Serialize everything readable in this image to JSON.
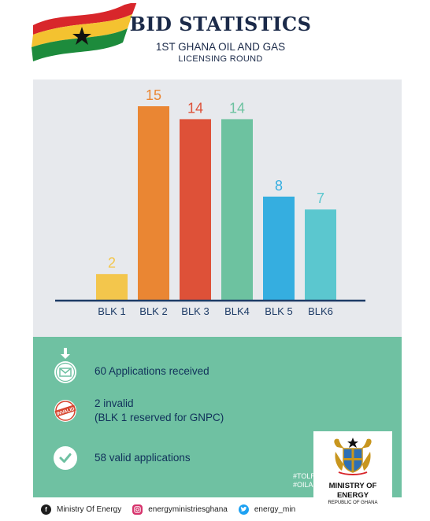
{
  "header": {
    "title": "BID STATISTICS",
    "subtitle_line1": "1ST GHANA OIL AND GAS",
    "subtitle_line2": "LICENSING ROUND"
  },
  "chart_data": {
    "type": "bar",
    "categories": [
      "BLK 1",
      "BLK 2",
      "BLK 3",
      "BLK4",
      "BLK 5",
      "BLK6"
    ],
    "values": [
      2,
      15,
      14,
      14,
      8,
      7
    ],
    "colors": [
      "#f3c64c",
      "#ea8633",
      "#de5138",
      "#6dc2a0",
      "#35aee0",
      "#5bc7cf"
    ],
    "ylim": [
      0,
      15
    ],
    "grid": false
  },
  "info": {
    "items": [
      {
        "text_lines": [
          "60 Applications received"
        ],
        "icon": "envelope-download-icon"
      },
      {
        "text_lines": [
          "2 invalid",
          "(BLK 1 reserved for GNPC)"
        ],
        "icon": "invalid-stamp-icon",
        "stamp_text": "INVALID"
      },
      {
        "text_lines": [
          "58 valid applications"
        ],
        "icon": "checkmark-icon"
      }
    ],
    "hashtags": [
      "#TOLR",
      "#OILANDGAS"
    ]
  },
  "ministry": {
    "name_line1": "MINISTRY OF",
    "name_line2": "ENERGY",
    "sub": "REPUBLIC OF GHANA"
  },
  "footer": {
    "facebook": "Ministry Of Energy",
    "instagram": "energyministriesghana",
    "twitter": "energy_min"
  },
  "colors": {
    "navy": "#1d3b66",
    "chart_bg": "#e7e9ed",
    "info_bg": "#6fc1a2"
  }
}
